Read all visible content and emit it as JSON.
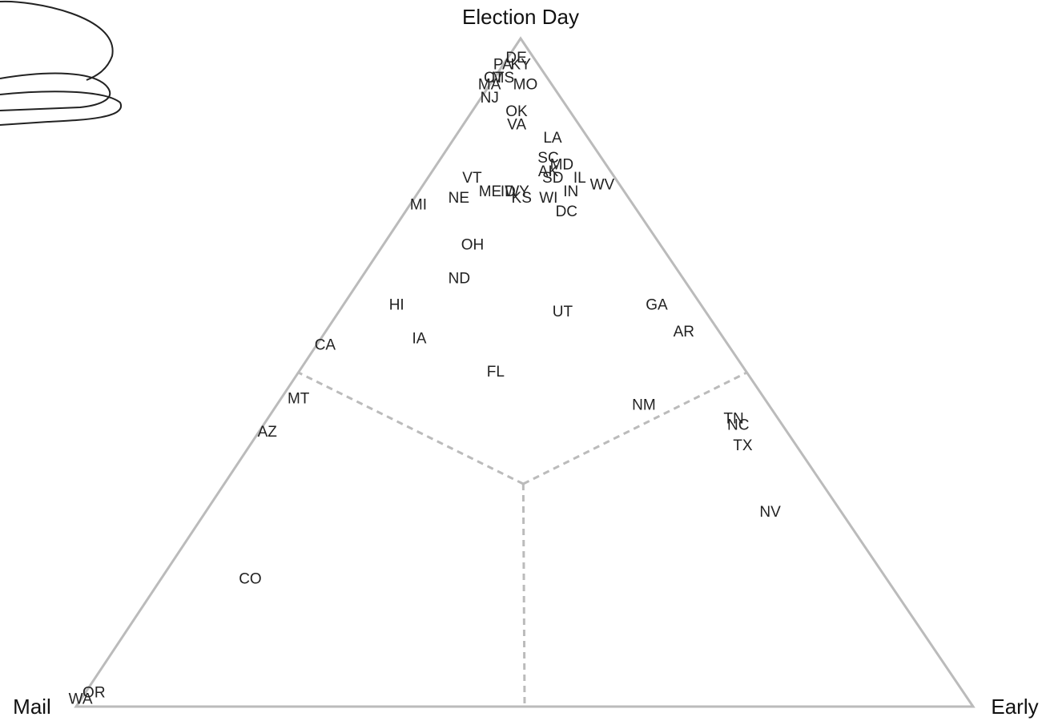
{
  "chart_data": {
    "type": "ternary",
    "categories": [
      "DE",
      "KY",
      "PA",
      "CT",
      "MA",
      "MS",
      "MO",
      "NJ",
      "OK",
      "VA",
      "LA",
      "SC",
      "AK",
      "MD",
      "SD",
      "IL",
      "IN",
      "WV",
      "VT",
      "NE",
      "ME",
      "ID",
      "WY",
      "KS",
      "WI",
      "DC",
      "MI",
      "OH",
      "ND",
      "HI",
      "UT",
      "GA",
      "AR",
      "CA",
      "IA",
      "FL",
      "MT",
      "NM",
      "AZ",
      "TN",
      "NC",
      "TX",
      "NV",
      "CO",
      "WA",
      "OR"
    ],
    "series": [
      {
        "name": "Election Day",
        "values": [
          97,
          96,
          96,
          94,
          93,
          94,
          93,
          91,
          89,
          87,
          85,
          82,
          80,
          81,
          79,
          79,
          77,
          78,
          79,
          76,
          77,
          77,
          77,
          76,
          76,
          74,
          75,
          69,
          64,
          60,
          59,
          60,
          56,
          54,
          55,
          50,
          46,
          45,
          41,
          43,
          42,
          39,
          29,
          19,
          1,
          2
        ]
      },
      {
        "name": "Mail",
        "values": [
          2,
          2,
          4,
          6,
          7,
          5,
          3,
          8,
          6,
          7,
          4,
          6,
          7,
          5,
          7,
          4,
          6,
          2,
          16,
          19,
          15,
          13,
          12,
          12,
          9,
          8,
          24,
          21,
          25,
          34,
          16,
          5,
          4,
          45,
          34,
          28,
          52,
          14,
          58,
          5,
          5,
          6,
          8,
          71,
          99,
          97
        ]
      },
      {
        "name": "Early",
        "values": [
          1,
          2,
          0,
          0,
          0,
          1,
          4,
          1,
          5,
          6,
          11,
          12,
          13,
          14,
          14,
          17,
          17,
          20,
          5,
          5,
          8,
          10,
          11,
          12,
          15,
          18,
          1,
          10,
          11,
          6,
          25,
          35,
          40,
          1,
          11,
          22,
          2,
          41,
          1,
          52,
          53,
          55,
          63,
          10,
          0,
          1
        ]
      }
    ],
    "label_color": "#222222",
    "frame_color": "#bbbbbb",
    "regions": true
  }
}
